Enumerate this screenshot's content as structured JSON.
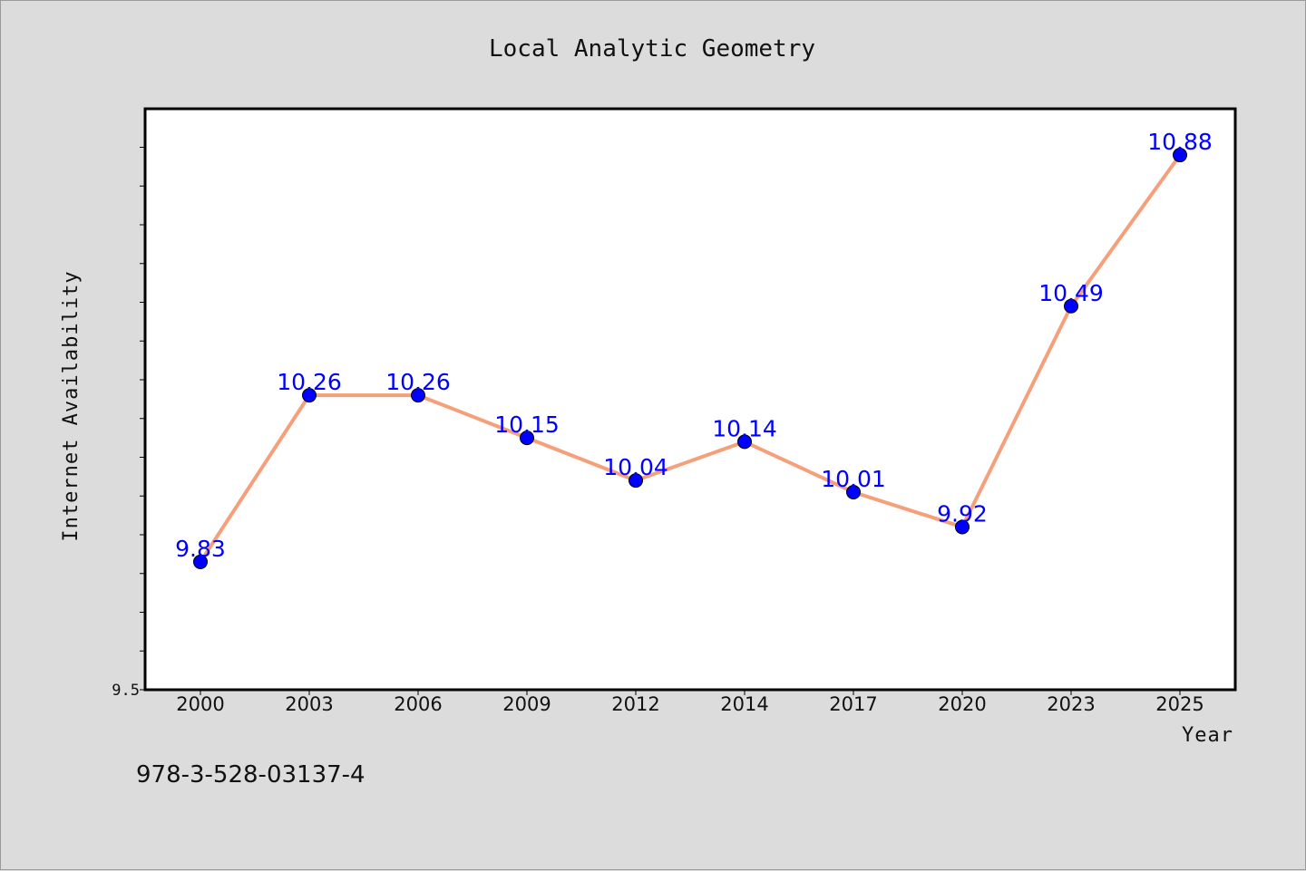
{
  "chart_data": {
    "type": "line",
    "title": "Local Analytic Geometry",
    "xlabel": "Year",
    "ylabel": "Internet Availability",
    "categories": [
      "2000",
      "2003",
      "2006",
      "2009",
      "2012",
      "2014",
      "2017",
      "2020",
      "2023",
      "2025"
    ],
    "series": [
      {
        "values": [
          9.83,
          10.26,
          10.26,
          10.15,
          10.04,
          10.14,
          10.01,
          9.92,
          10.49,
          10.88
        ],
        "labels": [
          "9.83",
          "10.26",
          "10.26",
          "10.15",
          "10.04",
          "10.14",
          "10.01",
          "9.92",
          "10.49",
          "10.88"
        ],
        "line_color": "#f5a07a",
        "marker_color": "#0000ff",
        "label_color": "#0000ff"
      }
    ],
    "ylim": [
      9.5,
      11.0
    ],
    "ytick_label": "9.5",
    "grid": false,
    "legend": "none"
  },
  "footer": {
    "isbn": "978-3-528-03137-4"
  },
  "colors": {
    "background": "#dcdcdc",
    "plot_background": "#ffffff",
    "axis": "#000000"
  }
}
